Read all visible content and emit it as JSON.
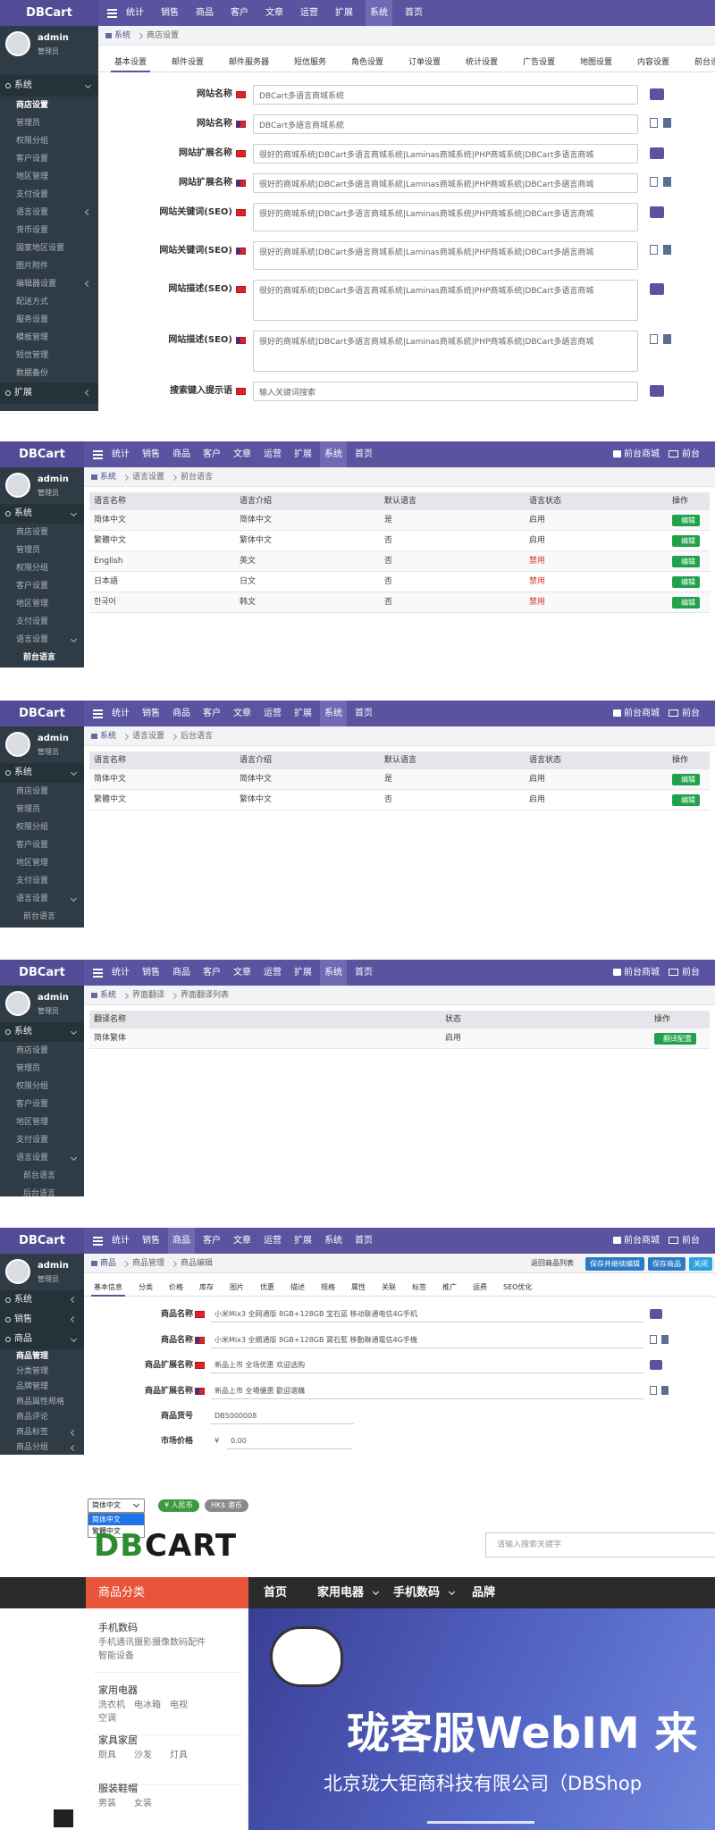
{
  "admin_header": {
    "logo": "DBCart",
    "user": "admin",
    "role": "管理员",
    "nav": [
      "统计",
      "销售",
      "商品",
      "客户",
      "文章",
      "运营",
      "扩展",
      "系统",
      "首页"
    ],
    "shop_link": "前台商城",
    "front_link": "前台",
    "edit_button": "编辑"
  },
  "settings_page": {
    "sidebar": [
      {
        "label": "系统",
        "level": 0,
        "open": true
      },
      {
        "label": "商店设置",
        "level": 1,
        "active": true
      },
      {
        "label": "管理员",
        "level": 1
      },
      {
        "label": "权限分组",
        "level": 1
      },
      {
        "label": "客户设置",
        "level": 1
      },
      {
        "label": "地区管理",
        "level": 1
      },
      {
        "label": "支付设置",
        "level": 1
      },
      {
        "label": "语言设置",
        "level": 1,
        "more": true
      },
      {
        "label": "货币设置",
        "level": 1
      },
      {
        "label": "国家地区设置",
        "level": 1
      },
      {
        "label": "图片附件",
        "level": 1
      },
      {
        "label": "编辑器设置",
        "level": 1,
        "more": true
      },
      {
        "label": "配送方式",
        "level": 1
      },
      {
        "label": "服务设置",
        "level": 1
      },
      {
        "label": "模板管理",
        "level": 1
      },
      {
        "label": "短信管理",
        "level": 1
      },
      {
        "label": "数据备份",
        "level": 1
      },
      {
        "label": "扩展",
        "level": 0
      }
    ],
    "breadcrumb": [
      "系统",
      "商店设置"
    ],
    "tabs": [
      "基本设置",
      "邮件设置",
      "邮件服务器",
      "短信服务",
      "角色设置",
      "订单设置",
      "统计设置",
      "广告设置",
      "地图设置",
      "内容设置",
      "前台设置"
    ],
    "form": [
      {
        "label": "网站名称",
        "lang": "zh",
        "value": "DBCart多语言商城系统",
        "lines": 1
      },
      {
        "label": "网站名称",
        "lang": "tw",
        "value": "DBCart多語言商城系統",
        "lines": 1
      },
      {
        "label": "网站扩展名称",
        "lang": "zh",
        "value": "很好的商城系统|DBCart多语言商城系统|Laminas商城系统|PHP商城系统|DBCart多语言商城",
        "lines": 1
      },
      {
        "label": "网站扩展名称",
        "lang": "tw",
        "value": "很好的商城系統|DBCart多語言商城系統|Laminas商城系統|PHP商城系統|DBCart多語言商城",
        "lines": 1
      },
      {
        "label": "网站关键词(SEO)",
        "lang": "zh",
        "value": "很好的商城系统|DBCart多语言商城系统|Laminas商城系统|PHP商城系统|DBCart多语言商城",
        "lines": 2
      },
      {
        "label": "网站关键词(SEO)",
        "lang": "tw",
        "value": "很好的商城系統|DBCart多語言商城系統|Laminas商城系統|PHP商城系統|DBCart多語言商城",
        "lines": 2
      },
      {
        "label": "网站描述(SEO)",
        "lang": "zh",
        "value": "很好的商城系统|DBCart多语言商城系统|Laminas商城系统|PHP商城系统|DBCart多语言商城",
        "lines": 3
      },
      {
        "label": "网站描述(SEO)",
        "lang": "tw",
        "value": "很好的商城系統|DBCart多語言商城系統|Laminas商城系統|PHP商城系統|DBCart多語言商城",
        "lines": 3
      },
      {
        "label": "搜索键入提示语",
        "lang": "zh",
        "value": "输入关键词搜索",
        "lines": 1
      }
    ]
  },
  "front_language_page": {
    "sidebar": [
      {
        "label": "系统",
        "level": 0,
        "open": true
      },
      {
        "label": "商店设置",
        "level": 1
      },
      {
        "label": "管理员",
        "level": 1
      },
      {
        "label": "权限分组",
        "level": 1
      },
      {
        "label": "客户设置",
        "level": 1
      },
      {
        "label": "地区管理",
        "level": 1
      },
      {
        "label": "支付设置",
        "level": 1
      },
      {
        "label": "语言设置",
        "level": 1,
        "open": true
      },
      {
        "label": "前台语言",
        "level": 2,
        "active": true
      },
      {
        "label": "后台语言",
        "level": 2
      },
      {
        "label": "界面翻译",
        "level": 2
      }
    ],
    "breadcrumb": [
      "系统",
      "语言设置",
      "前台语言"
    ],
    "table": {
      "columns": [
        "语言名称",
        "语言介绍",
        "默认语言",
        "语言状态",
        "操作"
      ],
      "rows": [
        {
          "cells": [
            "简体中文",
            "简体中文",
            "是",
            "启用"
          ]
        },
        {
          "cells": [
            "繁體中文",
            "繁体中文",
            "否",
            "启用"
          ]
        },
        {
          "cells": [
            "English",
            "英文",
            "否",
            "禁用"
          ],
          "disabled": true
        },
        {
          "cells": [
            "日本語",
            "日文",
            "否",
            "禁用"
          ],
          "disabled": true
        },
        {
          "cells": [
            "한국어",
            "韩文",
            "否",
            "禁用"
          ],
          "disabled": true
        }
      ]
    }
  },
  "admin_language_page": {
    "sidebar": [
      {
        "label": "系统",
        "level": 0,
        "open": true
      },
      {
        "label": "商店设置",
        "level": 1
      },
      {
        "label": "管理员",
        "level": 1
      },
      {
        "label": "权限分组",
        "level": 1
      },
      {
        "label": "客户设置",
        "level": 1
      },
      {
        "label": "地区管理",
        "level": 1
      },
      {
        "label": "支付设置",
        "level": 1
      },
      {
        "label": "语言设置",
        "level": 1,
        "open": true
      },
      {
        "label": "前台语言",
        "level": 2
      },
      {
        "label": "后台语言",
        "level": 2,
        "active": true
      },
      {
        "label": "界面翻译",
        "level": 2
      }
    ],
    "breadcrumb": [
      "系统",
      "语言设置",
      "后台语言"
    ],
    "table": {
      "columns": [
        "语言名称",
        "语言介绍",
        "默认语言",
        "语言状态",
        "操作"
      ],
      "rows": [
        {
          "cells": [
            "简体中文",
            "简体中文",
            "是",
            "启用"
          ]
        },
        {
          "cells": [
            "繁體中文",
            "繁体中文",
            "否",
            "启用"
          ]
        }
      ]
    }
  },
  "translation_page": {
    "sidebar": [
      {
        "label": "系统",
        "level": 0,
        "open": true
      },
      {
        "label": "商店设置",
        "level": 1
      },
      {
        "label": "管理员",
        "level": 1
      },
      {
        "label": "权限分组",
        "level": 1
      },
      {
        "label": "客户设置",
        "level": 1
      },
      {
        "label": "地区管理",
        "level": 1
      },
      {
        "label": "支付设置",
        "level": 1
      },
      {
        "label": "语言设置",
        "level": 1,
        "open": true
      },
      {
        "label": "前台语言",
        "level": 2
      },
      {
        "label": "后台语言",
        "level": 2
      },
      {
        "label": "界面翻译",
        "level": 2,
        "active": true
      }
    ],
    "breadcrumb": [
      "系统",
      "界面翻译",
      "界面翻译列表"
    ],
    "table": {
      "columns": [
        "翻译名称",
        "状态",
        "操作"
      ],
      "rows": [
        {
          "cells": [
            "简体繁体",
            "启用"
          ]
        }
      ]
    },
    "action_button": "翻译配置"
  },
  "product_page": {
    "sidebar": [
      {
        "label": "系统",
        "level": 0
      },
      {
        "label": "销售",
        "level": 0
      },
      {
        "label": "商品",
        "level": 0,
        "open": true
      },
      {
        "label": "商品管理",
        "level": 1,
        "active": true
      },
      {
        "label": "分类管理",
        "level": 1
      },
      {
        "label": "品牌管理",
        "level": 1
      },
      {
        "label": "商品属性规格",
        "level": 1
      },
      {
        "label": "商品评论",
        "level": 1
      },
      {
        "label": "商品标签",
        "level": 1,
        "more": true
      },
      {
        "label": "商品分组",
        "level": 1,
        "more": true
      },
      {
        "label": "商品导出",
        "level": 1
      }
    ],
    "breadcrumb": [
      "商品",
      "商品管理",
      "商品编辑"
    ],
    "back_link": "返回商品列表",
    "buttons": [
      "保存并继续编辑",
      "保存商品",
      "关闭"
    ],
    "tabs": [
      "基本信息",
      "分类",
      "价格",
      "库存",
      "图片",
      "优惠",
      "描述",
      "规格",
      "属性",
      "关联",
      "标签",
      "推广",
      "运费",
      "SEO优化"
    ],
    "form": [
      {
        "label": "商品名称",
        "lang": "zh",
        "value": "小米Mix3 全网通版 8GB+128GB 宝石蓝 移动联通电信4G手机"
      },
      {
        "label": "商品名称",
        "lang": "tw",
        "value": "小米Mix3 全網通版 8GB+128GB 寶石藍 移動聯通電信4G手機"
      },
      {
        "label": "商品扩展名称",
        "lang": "zh",
        "value": "新品上市 全场优惠 欢迎选购"
      },
      {
        "label": "商品扩展名称",
        "lang": "tw",
        "value": "新品上市 全場優惠 歡迎選購"
      }
    ],
    "sku_label": "商品货号",
    "sku_value": "DB5000008",
    "price_label": "市场价格",
    "price_symbol": "¥",
    "price_value": "0.00"
  },
  "storefront": {
    "language_select": "简体中文",
    "language_options": [
      "简体中文",
      "繁體中文"
    ],
    "currencies": [
      "¥ 人民币",
      "HK$ 港币"
    ],
    "logo_parts": [
      "DB",
      "CART"
    ],
    "search_placeholder": "请输入搜索关键字",
    "category_title": "商品分类",
    "nav": [
      "首页",
      "家用电器",
      "手机数码",
      "品牌"
    ],
    "categories": [
      {
        "name": "手机数码",
        "items": [
          "手机通讯",
          "摄影摄像",
          "数码配件",
          "智能设备"
        ]
      },
      {
        "name": "家用电器",
        "items": [
          "洗衣机",
          "电冰箱",
          "电视",
          "空调"
        ]
      },
      {
        "name": "家具家居",
        "items": [
          "厨具",
          "沙发",
          "灯具"
        ]
      },
      {
        "name": "服装鞋帽",
        "items": [
          "男装",
          "女装"
        ]
      }
    ],
    "banner_title": "珑客服WebIM 来",
    "banner_subtitle": "北京珑大钜商科技有限公司（DBShop"
  }
}
